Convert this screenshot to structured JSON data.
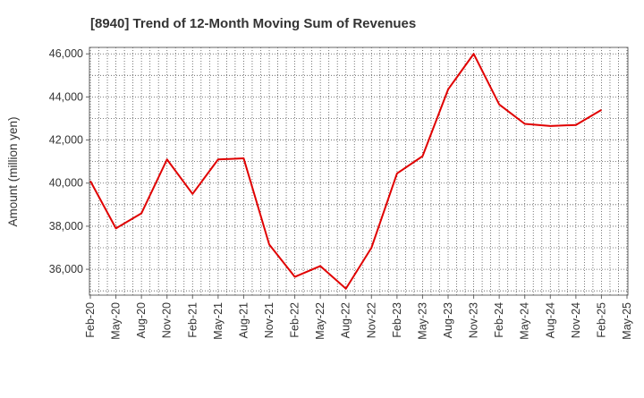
{
  "chart_data": {
    "type": "line",
    "title": "[8940]  Trend of 12-Month Moving Sum of Revenues",
    "xlabel": "",
    "ylabel": "Amount (million yen)",
    "ylim": [
      34800,
      46300
    ],
    "yticks": [
      36000,
      38000,
      40000,
      42000,
      44000,
      46000
    ],
    "ytick_labels": [
      "36,000",
      "38,000",
      "40,000",
      "42,000",
      "44,000",
      "46,000"
    ],
    "x_tick_labels": [
      "Feb-20",
      "May-20",
      "Aug-20",
      "Nov-20",
      "Feb-21",
      "May-21",
      "Aug-21",
      "Nov-21",
      "Feb-22",
      "May-22",
      "Aug-22",
      "Nov-22",
      "Feb-23",
      "May-23",
      "Aug-23",
      "Nov-23",
      "Feb-24",
      "May-24",
      "Aug-24",
      "Nov-24",
      "Feb-25",
      "May-25"
    ],
    "grid": true,
    "legend": "none",
    "line_color": "#e00000",
    "series": [
      {
        "x": [
          "Feb-20",
          "May-20",
          "Aug-20",
          "Nov-20",
          "Feb-21",
          "May-21",
          "Aug-21",
          "Nov-21",
          "Feb-22",
          "May-22",
          "Aug-22",
          "Nov-22",
          "Feb-23",
          "May-23",
          "Aug-23",
          "Nov-23",
          "Feb-24",
          "May-24",
          "Aug-24",
          "Nov-24",
          "Feb-25"
        ],
        "values": [
          40100,
          37900,
          38600,
          41100,
          39500,
          41100,
          41150,
          37150,
          35650,
          36150,
          35100,
          37000,
          40450,
          41250,
          44350,
          46000,
          43650,
          42750,
          42650,
          42700,
          43400
        ]
      }
    ]
  }
}
